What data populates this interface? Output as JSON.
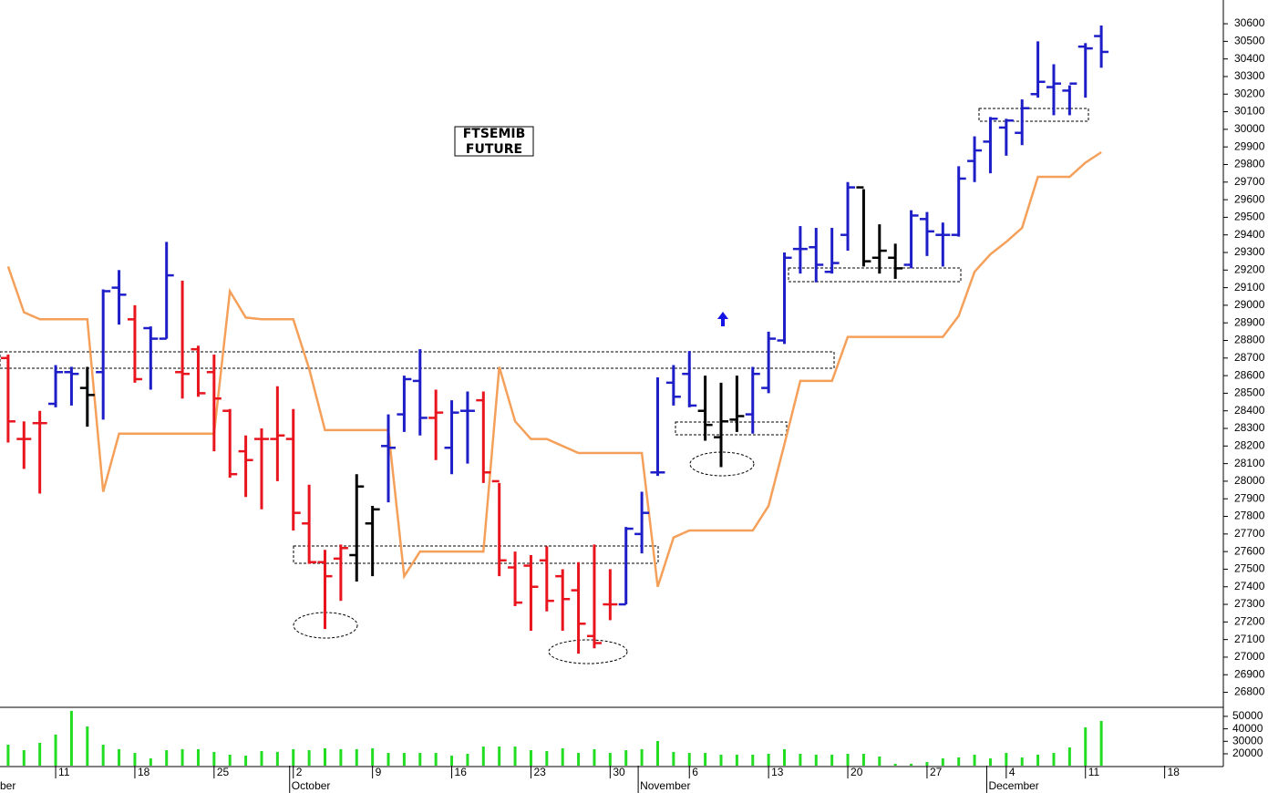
{
  "chart_data": {
    "type": "ohlc",
    "title_lines": [
      "FTSEMIB",
      "FUTURE"
    ],
    "categories": [
      null,
      null,
      null,
      "11",
      null,
      null,
      null,
      null,
      "18",
      null,
      null,
      null,
      null,
      "25",
      null,
      null,
      null,
      null,
      "2",
      null,
      null,
      null,
      null,
      "9",
      null,
      null,
      null,
      null,
      "16",
      null,
      null,
      null,
      null,
      "23",
      null,
      null,
      null,
      null,
      "30",
      null,
      null,
      null,
      null,
      "6",
      null,
      null,
      null,
      null,
      "13",
      null,
      null,
      null,
      null,
      "20",
      null,
      null,
      null,
      null,
      "27",
      null,
      null,
      null,
      null,
      "4",
      null,
      null,
      null,
      null,
      "11",
      null,
      null,
      null,
      null,
      "18",
      null,
      null,
      null
    ],
    "months": [
      "ber",
      null,
      null,
      null,
      null,
      null,
      null,
      null,
      null,
      null,
      null,
      null,
      null,
      null,
      null,
      null,
      null,
      null,
      "October",
      null,
      null,
      null,
      null,
      null,
      null,
      null,
      null,
      null,
      null,
      null,
      null,
      null,
      null,
      null,
      null,
      null,
      null,
      null,
      null,
      null,
      "November",
      null,
      null,
      null,
      null,
      null,
      null,
      null,
      null,
      null,
      null,
      null,
      null,
      null,
      null,
      null,
      null,
      null,
      null,
      null,
      null,
      null,
      "December",
      null,
      null,
      null,
      null,
      null,
      null,
      null,
      null,
      null,
      null,
      null,
      null,
      null,
      null
    ],
    "open": [
      28700,
      28240,
      28330,
      28440,
      28620,
      28530,
      28620,
      29100,
      28920,
      28870,
      28810,
      28620,
      28750,
      28620,
      28400,
      28170,
      28240,
      28240,
      28240,
      27760,
      27540,
      27560,
      27580,
      27760,
      28200,
      28380,
      28570,
      28360,
      28190,
      28400,
      28460,
      28000,
      27510,
      27520,
      27550,
      27460,
      27380,
      27120,
      27300,
      27300,
      27700,
      28050,
      28560,
      28610,
      28400,
      28250,
      28350,
      28380,
      28530,
      28800,
      29320,
      29330,
      29190,
      29400,
      29670,
      29270,
      29270,
      29230,
      29490,
      29400,
      29400,
      29820,
      29930,
      30010,
      29980,
      30200,
      30240,
      30220,
      30470,
      30530,
      null,
      null,
      null,
      null,
      null,
      null,
      null
    ],
    "high": [
      28720,
      28340,
      28400,
      28660,
      28650,
      28650,
      29090,
      29200,
      29000,
      28880,
      29360,
      29140,
      28770,
      28720,
      28410,
      28260,
      28300,
      28540,
      28410,
      27980,
      27610,
      27640,
      28040,
      27860,
      28380,
      28600,
      28750,
      28520,
      28460,
      28510,
      28510,
      27990,
      27600,
      27580,
      27630,
      27500,
      27540,
      27640,
      27500,
      27740,
      27940,
      28590,
      28660,
      28740,
      28600,
      28560,
      28600,
      28650,
      28850,
      29300,
      29450,
      29440,
      29440,
      29700,
      29660,
      29460,
      29350,
      29540,
      29530,
      29470,
      29790,
      29960,
      30070,
      30060,
      30170,
      30500,
      30370,
      30250,
      30490,
      30590,
      null,
      null,
      null,
      null,
      null,
      null,
      null
    ],
    "low": [
      28220,
      28070,
      27930,
      28420,
      28430,
      28310,
      28350,
      28890,
      28560,
      28520,
      28810,
      28470,
      28480,
      28170,
      28020,
      27910,
      27840,
      28000,
      27720,
      27530,
      27160,
      27320,
      27430,
      27460,
      27880,
      28280,
      28260,
      28120,
      28040,
      28100,
      27990,
      27460,
      27290,
      27150,
      27260,
      27150,
      27020,
      27050,
      27210,
      27300,
      27590,
      28030,
      28430,
      28420,
      28230,
      28080,
      28280,
      28270,
      28500,
      28780,
      29180,
      29130,
      29180,
      29310,
      29220,
      29180,
      29150,
      29210,
      29280,
      29220,
      29390,
      29700,
      29750,
      29850,
      29910,
      30180,
      30080,
      30080,
      30180,
      30350,
      null,
      null,
      null,
      null,
      null,
      null,
      null
    ],
    "close": [
      28340,
      28240,
      28330,
      28620,
      28610,
      28490,
      29080,
      29060,
      28580,
      28810,
      29170,
      28610,
      28500,
      28470,
      28040,
      28120,
      28240,
      28260,
      27820,
      27540,
      27460,
      27620,
      27970,
      27840,
      28190,
      28580,
      28360,
      28390,
      28390,
      28400,
      28050,
      27550,
      27310,
      27400,
      27320,
      27330,
      27190,
      27080,
      27300,
      27730,
      27820,
      28050,
      28480,
      28430,
      28320,
      28340,
      28370,
      28610,
      28810,
      29270,
      29320,
      29230,
      29240,
      29670,
      29250,
      29310,
      29210,
      29510,
      29420,
      29400,
      29720,
      29880,
      30060,
      30050,
      30120,
      30270,
      30260,
      30260,
      30460,
      30440,
      null,
      null,
      null,
      null,
      null,
      null,
      null
    ],
    "bar_colors": [
      "#e8141e",
      "#e8141e",
      "#e8141e",
      "#1e1ec8",
      "#1e1ec8",
      "#000000",
      "#1e1ec8",
      "#1e1ec8",
      "#e8141e",
      "#1e1ec8",
      "#1e1ec8",
      "#e8141e",
      "#e8141e",
      "#e8141e",
      "#e8141e",
      "#e8141e",
      "#e8141e",
      "#e8141e",
      "#e8141e",
      "#e8141e",
      "#e8141e",
      "#e8141e",
      "#000000",
      "#000000",
      "#1e1ec8",
      "#1e1ec8",
      "#1e1ec8",
      "#e8141e",
      "#1e1ec8",
      "#1e1ec8",
      "#e8141e",
      "#e8141e",
      "#e8141e",
      "#e8141e",
      "#e8141e",
      "#e8141e",
      "#e8141e",
      "#e8141e",
      "#e8141e",
      "#1e1ec8",
      "#1e1ec8",
      "#1e1ec8",
      "#1e1ec8",
      "#1e1ec8",
      "#000000",
      "#000000",
      "#000000",
      "#1e1ec8",
      "#1e1ec8",
      "#1e1ec8",
      "#1e1ec8",
      "#1e1ec8",
      "#1e1ec8",
      "#1e1ec8",
      "#000000",
      "#000000",
      "#000000",
      "#1e1ec8",
      "#1e1ec8",
      "#1e1ec8",
      "#1e1ec8",
      "#1e1ec8",
      "#1e1ec8",
      "#1e1ec8",
      "#1e1ec8",
      "#1e1ec8",
      "#1e1ec8",
      "#1e1ec8",
      "#1e1ec8",
      "#1e1ec8",
      null,
      null,
      null,
      null,
      null,
      null,
      null
    ],
    "stop_line": {
      "color": "#f5a05a",
      "values": [
        29220,
        28960,
        28920,
        28920,
        28920,
        28920,
        27940,
        28270,
        28270,
        28270,
        28270,
        28270,
        28270,
        28270,
        29080,
        28930,
        28920,
        28920,
        28920,
        28640,
        28290,
        28290,
        28290,
        28290,
        28290,
        27460,
        27600,
        27600,
        27600,
        27600,
        27600,
        28650,
        28340,
        28240,
        28240,
        28200,
        28160,
        28160,
        28160,
        28160,
        28160,
        27400,
        27680,
        27720,
        27720,
        27720,
        27720,
        27720,
        27860,
        28210,
        28570,
        28570,
        28570,
        28820,
        28820,
        28820,
        28820,
        28820,
        28820,
        28820,
        28940,
        29190,
        29290,
        29360,
        29440,
        29730,
        29730,
        29730,
        29810,
        29870,
        null,
        null,
        null,
        null,
        null,
        null,
        null
      ]
    },
    "ylim": [
      26720,
      30735
    ],
    "yticks": [
      26800,
      26900,
      27000,
      27100,
      27200,
      27300,
      27400,
      27500,
      27600,
      27700,
      27800,
      27900,
      28000,
      28100,
      28200,
      28300,
      28400,
      28500,
      28600,
      28700,
      28800,
      28900,
      29000,
      29100,
      29200,
      29300,
      29400,
      29500,
      29600,
      29700,
      29800,
      29900,
      30000,
      30100,
      30200,
      30300,
      30400,
      30500,
      30600
    ],
    "volume": {
      "color": "#22dd22",
      "ylim": [
        10500,
        56500
      ],
      "yticks": [
        20000,
        30000,
        40000,
        50000
      ],
      "values": [
        27300,
        22900,
        28800,
        35400,
        54400,
        41900,
        27300,
        23700,
        20700,
        16300,
        22900,
        23700,
        23700,
        21500,
        19300,
        18500,
        22200,
        21500,
        23700,
        22900,
        24400,
        23700,
        23700,
        24400,
        20700,
        20700,
        20700,
        20700,
        18500,
        20000,
        25800,
        25800,
        25800,
        22900,
        22200,
        24400,
        20700,
        23700,
        20700,
        22900,
        23700,
        30200,
        21500,
        20700,
        20700,
        19300,
        19300,
        19300,
        20000,
        23700,
        20000,
        19300,
        19300,
        20000,
        20000,
        17800,
        12000,
        12000,
        13400,
        16300,
        17100,
        19300,
        16300,
        20700,
        17100,
        19300,
        20700,
        25100,
        41200,
        46300,
        null,
        null,
        null,
        null,
        null,
        null,
        null
      ]
    }
  }
}
